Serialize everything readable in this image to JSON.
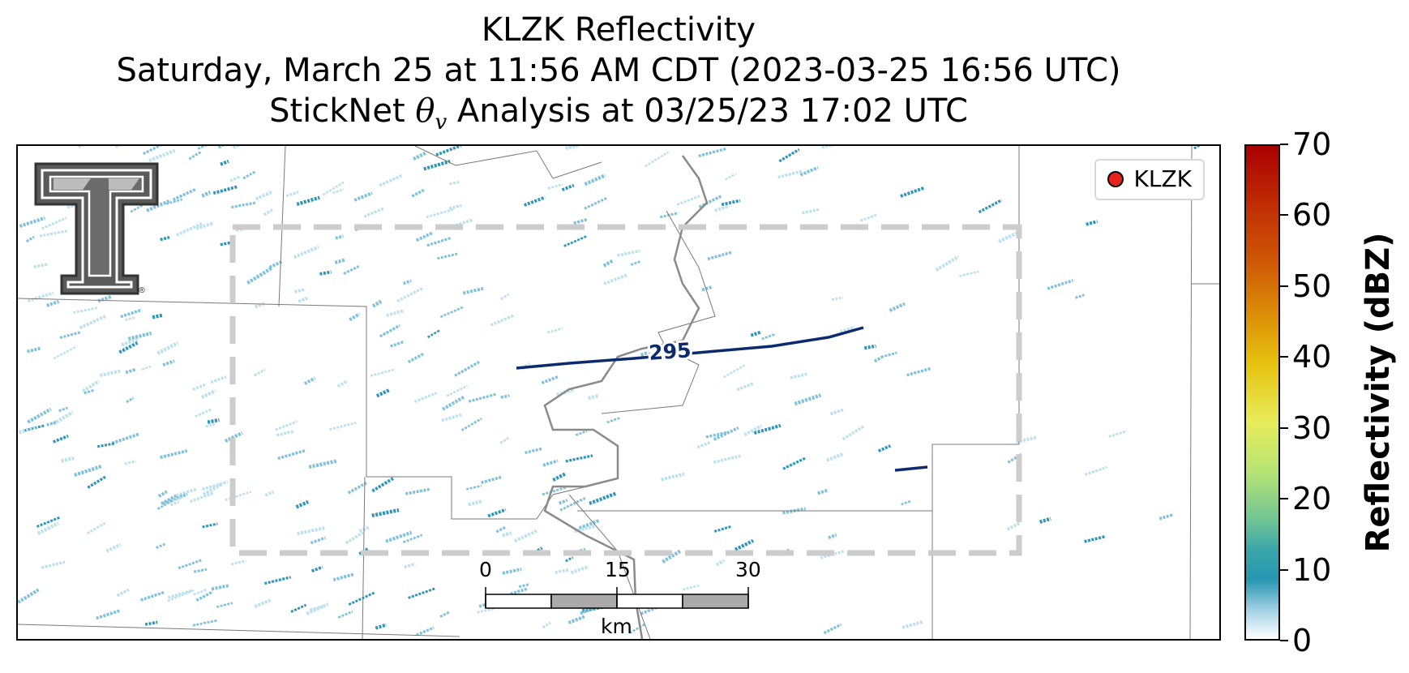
{
  "title": {
    "line1": "KLZK Reflectivity",
    "line2": "Saturday, March 25 at 11:56 AM CDT (2023-03-25 16:56 UTC)",
    "line3_prefix": "StickNet ",
    "line3_symbol": "θ",
    "line3_subscript": "v",
    "line3_suffix": " Analysis at 03/25/23 17:02 UTC"
  },
  "legend": {
    "label": "KLZK",
    "marker_color": "#e8231c"
  },
  "contour": {
    "label": "295",
    "color": "#0c2a6e"
  },
  "scale_bar": {
    "labels": [
      "0",
      "15",
      "30"
    ],
    "unit": "km"
  },
  "colorbar": {
    "title": "Reflectivity (dBZ)",
    "ticks": [
      "0",
      "10",
      "20",
      "30",
      "40",
      "50",
      "60",
      "70"
    ],
    "min": 0,
    "max": 70
  },
  "logo": {
    "name": "texas-tech-double-t-logo"
  },
  "colors": {
    "reflectivity_light": "#bde0ee",
    "reflectivity_mid": "#7fc0dc",
    "reflectivity_dark": "#2f95b8",
    "analysis_box": "#cccccc",
    "county_lines": "#888888",
    "river": "#8a8a8a"
  }
}
